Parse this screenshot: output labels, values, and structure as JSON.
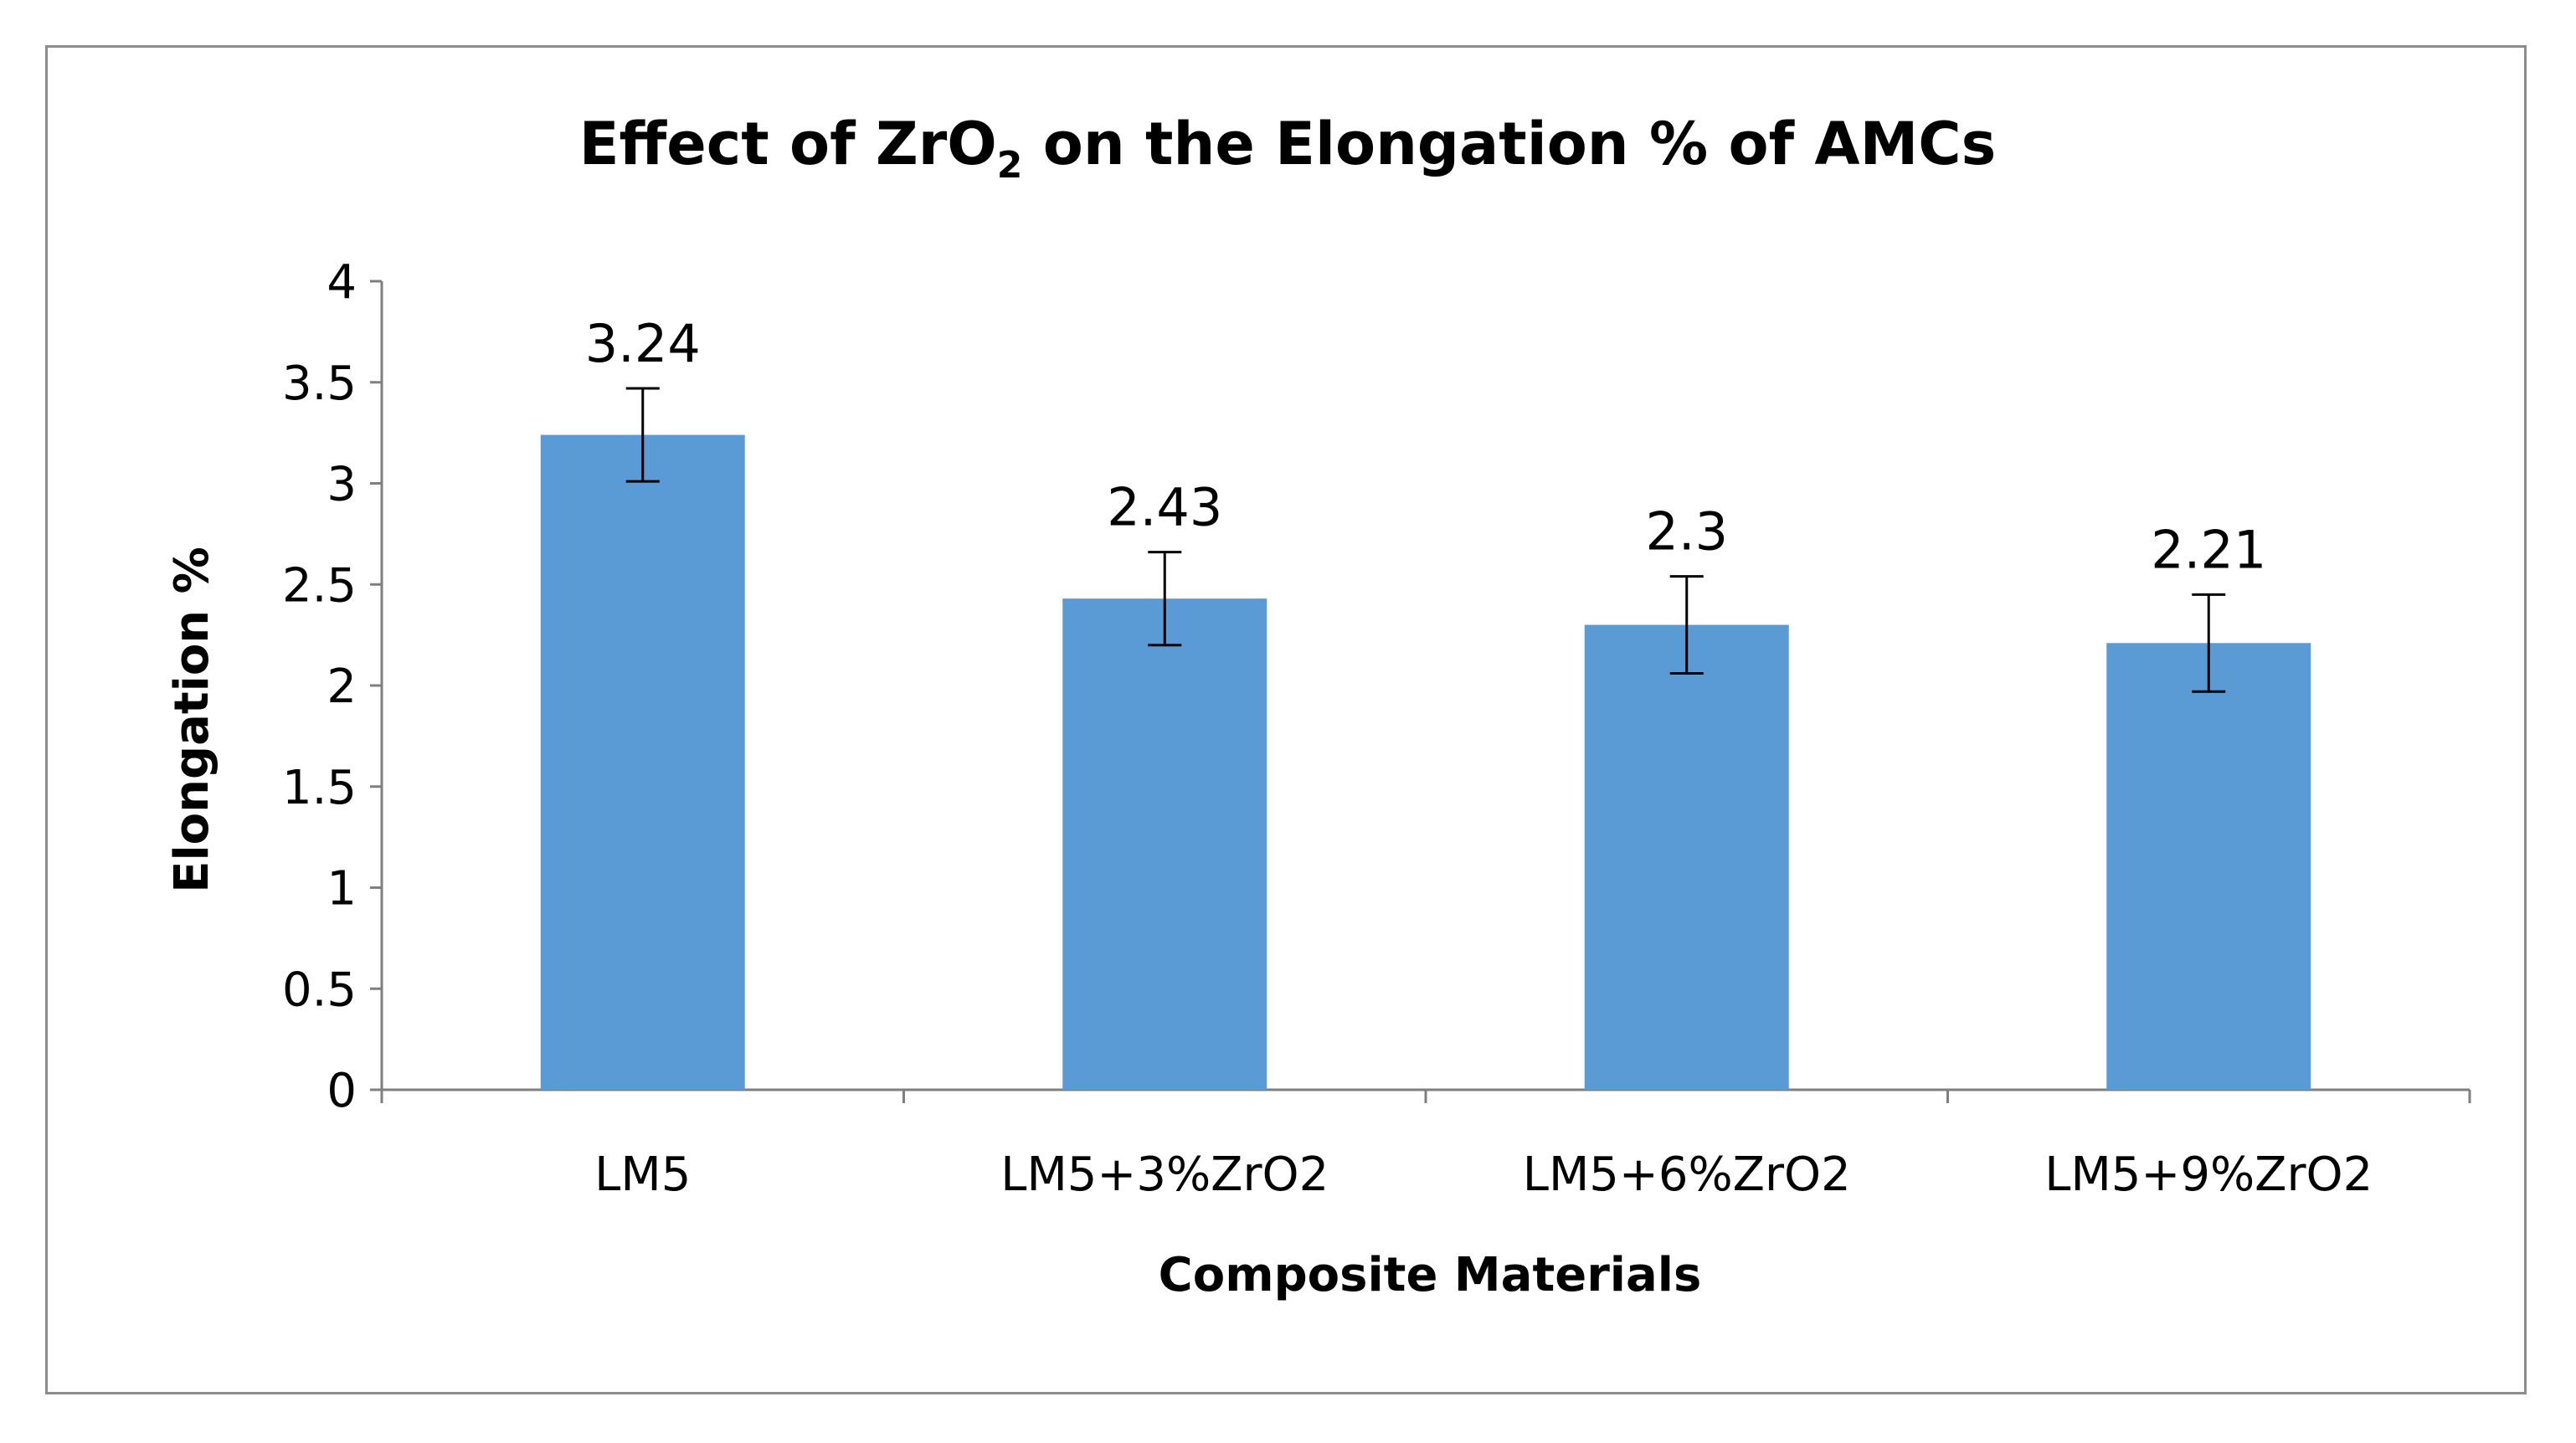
{
  "chart_data": {
    "type": "bar",
    "title": {
      "main": "Effect of ZrO",
      "subscript": "2",
      "rest": " on the Elongation % of AMCs"
    },
    "xlabel": "Composite Materials",
    "ylabel": "Elongation %",
    "categories": [
      "LM5",
      "LM5+3%ZrO2",
      "LM5+6%ZrO2",
      "LM5+9%ZrO2"
    ],
    "values": [
      3.24,
      2.43,
      2.3,
      2.21
    ],
    "data_labels": [
      "3.24",
      "2.43",
      "2.3",
      "2.21"
    ],
    "error_bars": [
      0.23,
      0.23,
      0.24,
      0.24
    ],
    "ylim": [
      0,
      4
    ],
    "yticks": [
      0,
      0.5,
      1,
      1.5,
      2,
      2.5,
      3,
      3.5,
      4
    ],
    "ytick_labels": [
      "0",
      "0.5",
      "1",
      "1.5",
      "2",
      "2.5",
      "3",
      "3.5",
      "4"
    ],
    "grid": false,
    "legend": "none",
    "colors": {
      "bar": "#5b9bd5",
      "axis": "#7f7f7f",
      "error_bar": "#000000"
    }
  }
}
